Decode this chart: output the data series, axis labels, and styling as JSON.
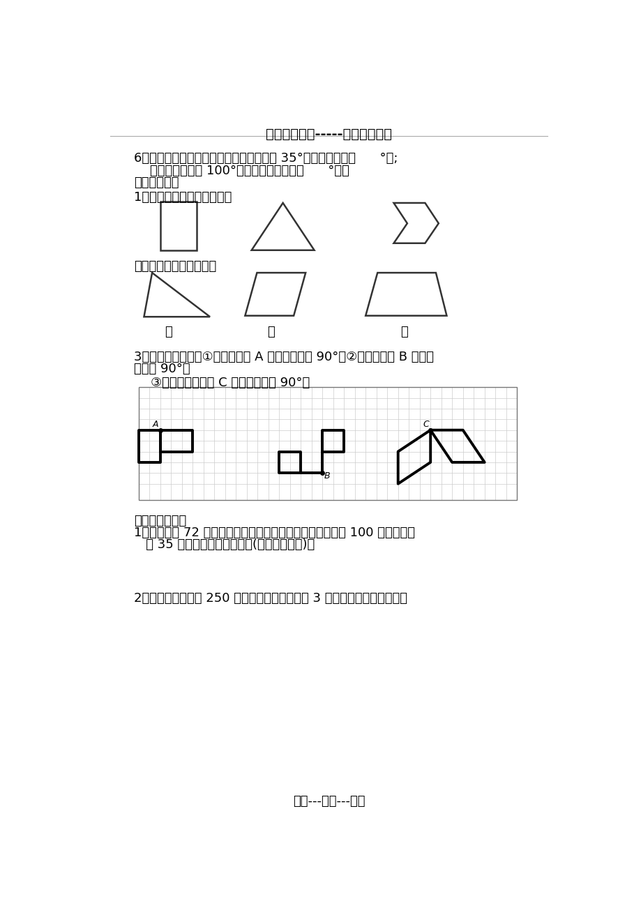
{
  "title_top": "精选优质文档-----倾情为你奉上",
  "bg_color": "#ffffff",
  "footer_text": "专心---专注---专业",
  "q6_line1": "6、一个等腰三角形，如果它的一个底角是 35°，它的顶角是（      °）;",
  "q6_line2": "    如果它的顶角是 100°，它的一个底角是（      °）。",
  "wu": "五、操作题。",
  "op1": "1、画出下列图形的对称轴。",
  "draw_height": "画出下面每个图形的高。",
  "di": "底",
  "q3_line1": "3、按要求画一画。①将长方形绕 A 点逆时针旋转 90°。②将小旗围绕 B 点逆时",
  "q3_line2": "针旋转 90°。",
  "q3_line3": "③将平行四边形绕 C 点顺时针旋转 90°。",
  "liu": "六、解决问题。",
  "word1_line1": "1、学校买来 72 套课桌（一张桌子配一张椅子），每张课桌 100 元，每把椅",
  "word1_line2": "   子 35 元，一共用了多少元？(两种方法解答)。",
  "word2_line1": "2、某饲养场中养鸡 250 只，养鸭的只数是鸡的 3 倍，鸡、鸭总数比养鹅的"
}
